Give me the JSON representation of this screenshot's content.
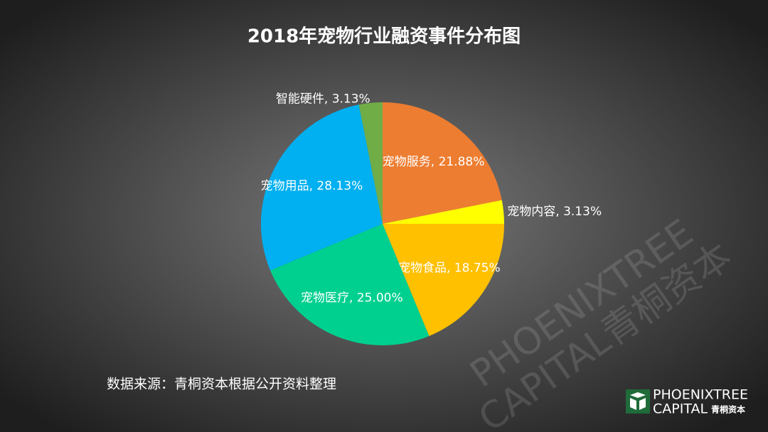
{
  "chart_data": {
    "type": "pie",
    "title": "2018年宠物行业融资事件分布图",
    "values": [
      21.88,
      3.13,
      18.75,
      25.0,
      28.13,
      3.13
    ],
    "value_labels": [
      "宠物服务, 21.88%",
      "宠物内容, 3.13%",
      "宠物食品, 18.75%",
      "宠物医疗, 25.00%",
      "宠物用品, 28.13%",
      "智能硬件, 3.13%"
    ],
    "colors": [
      "#ED7D31",
      "#FFFF00",
      "#FFC000",
      "#00D08F",
      "#00B0F0",
      "#70AD47"
    ],
    "source": "数据来源：青桐资本根据公开资料整理"
  },
  "logo": {
    "line1": "PHOENIXTREE",
    "line2": "CAPITAL",
    "cn": "青桐资本"
  },
  "watermark": {
    "line1": "PHOENIXTREE",
    "line2": "CAPITAL青桐资本"
  }
}
